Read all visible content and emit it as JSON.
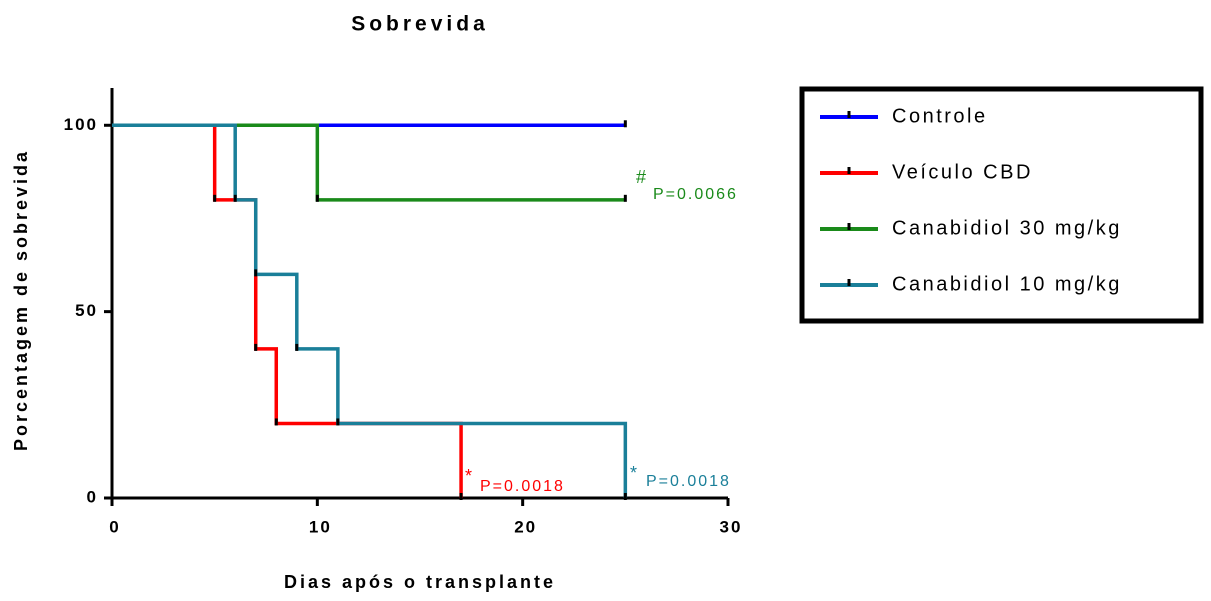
{
  "chart_data": {
    "type": "survival",
    "title": "Sobrevida",
    "xlabel": "Dias após o transplante",
    "ylabel": "Porcentagem de sobrevida",
    "xlim": [
      0,
      30
    ],
    "ylim": [
      0,
      110
    ],
    "xticks": [
      0,
      10,
      20,
      30
    ],
    "yticks": [
      0,
      50,
      100
    ],
    "legend": "right",
    "series": [
      {
        "name": "Controle",
        "color": "#0000ff",
        "x": [
          0,
          25
        ],
        "values": [
          100,
          100
        ]
      },
      {
        "name": "Veículo CBD",
        "color": "#ff0000",
        "x": [
          0,
          5,
          7,
          8,
          17
        ],
        "values": [
          100,
          80,
          40,
          20,
          0
        ]
      },
      {
        "name": "Canabidiol 30 mg/kg",
        "color": "#1a8a1a",
        "x": [
          0,
          10,
          25
        ],
        "values": [
          100,
          80,
          80
        ]
      },
      {
        "name": "Canabidiol 10 mg/kg",
        "color": "#1a7f99",
        "x": [
          0,
          6,
          7,
          9,
          11,
          25
        ],
        "values": [
          100,
          80,
          60,
          40,
          20,
          0
        ]
      }
    ],
    "annotations": [
      {
        "text": "#",
        "color": "#1a8a1a"
      },
      {
        "text": "P=0.0066",
        "color": "#1a8a1a"
      },
      {
        "text": "*",
        "color": "#ff0000"
      },
      {
        "text": "P=0.0018",
        "color": "#ff0000"
      },
      {
        "text": "*",
        "color": "#1a7f99"
      },
      {
        "text": "P=0.0018",
        "color": "#1a7f99"
      }
    ]
  }
}
